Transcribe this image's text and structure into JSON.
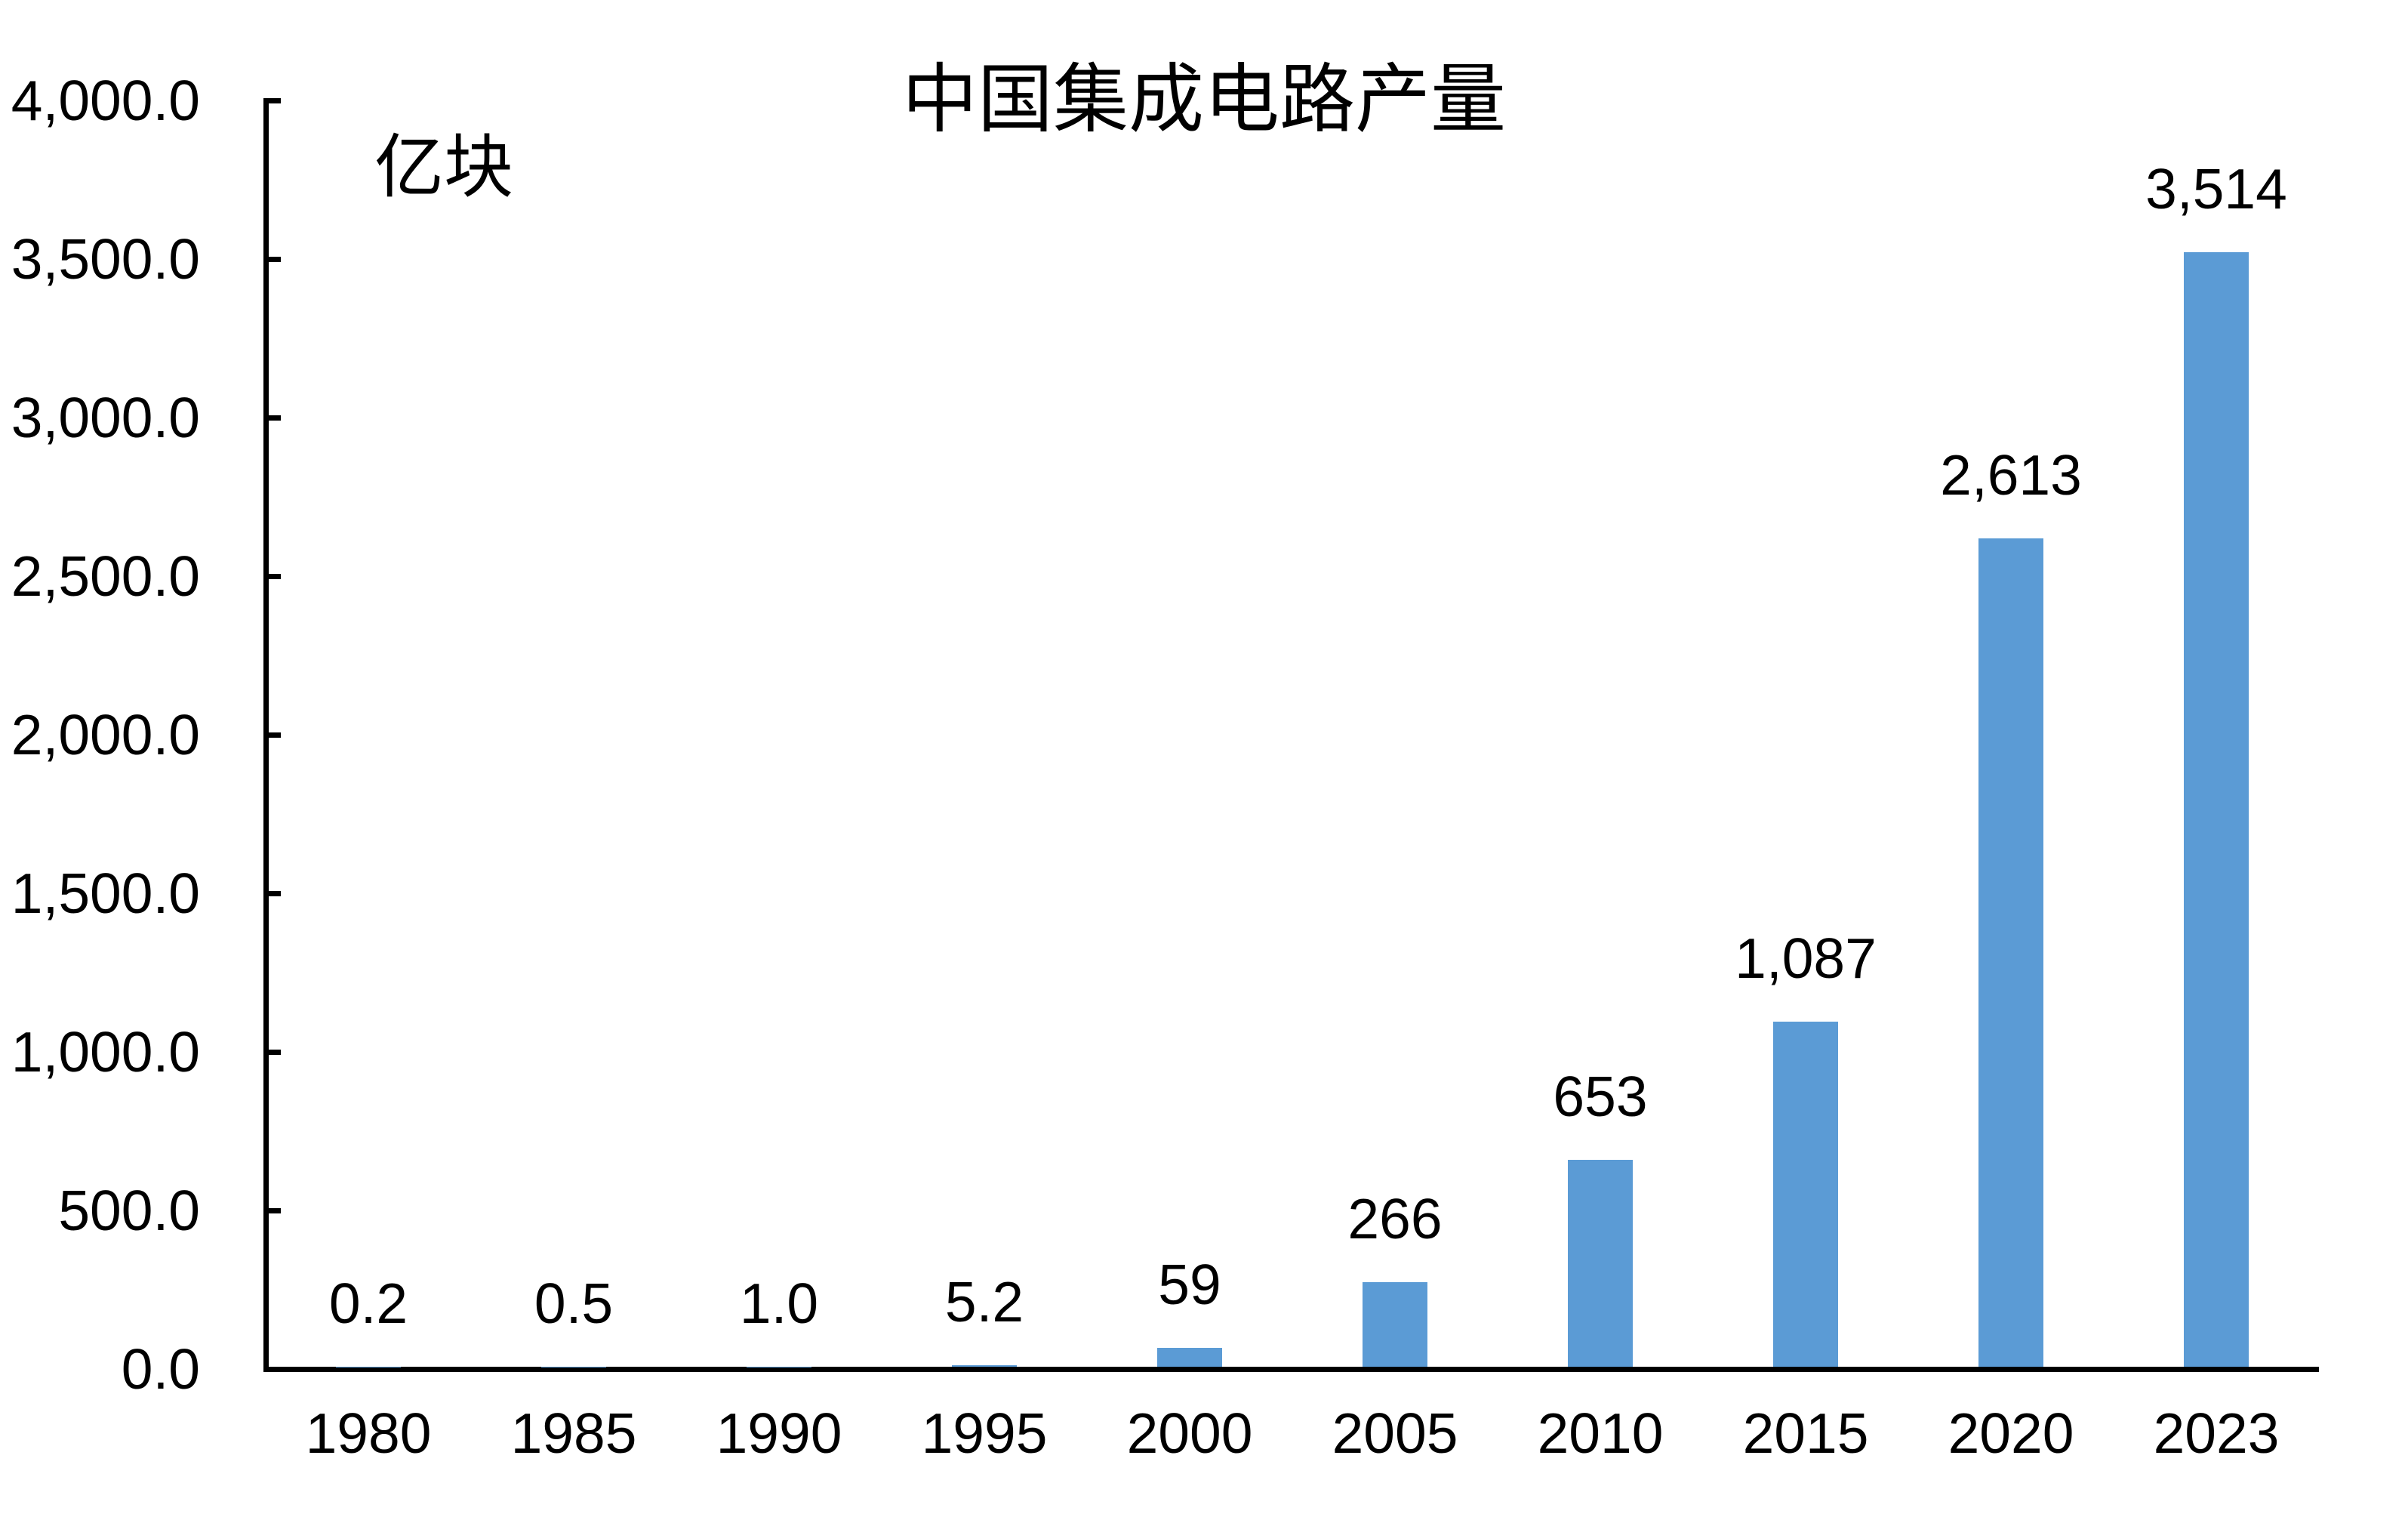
{
  "chart": {
    "title": "中国集成电路产量",
    "unit_label": "亿块",
    "colors": {
      "bar": "#5B9BD5",
      "axis": "#000000",
      "text": "#000000",
      "background": "#FFFFFF"
    }
  },
  "chart_data": {
    "type": "bar",
    "title": "中国集成电路产量",
    "ylabel": "亿块",
    "xlabel": "",
    "categories": [
      "1980",
      "1985",
      "1990",
      "1995",
      "2000",
      "2005",
      "2010",
      "2015",
      "2020",
      "2023"
    ],
    "values": [
      0.2,
      0.5,
      1.0,
      5.2,
      59,
      266,
      653,
      1087,
      2613,
      3514
    ],
    "value_labels": [
      "0.2",
      "0.5",
      "1.0",
      "5.2",
      "59",
      "266",
      "653",
      "1,087",
      "2,613",
      "3,514"
    ],
    "series_name": "中国集成电路产量",
    "ylim": [
      0,
      4000
    ],
    "y_tick_interval": 500,
    "y_tick_labels": [
      "0.0",
      "500.0",
      "1,000.0",
      "1,500.0",
      "2,000.0",
      "2,500.0",
      "3,000.0",
      "3,500.0",
      "4,000.0"
    ],
    "grid": false,
    "legend": "none",
    "data_label_position": "outside-end"
  }
}
